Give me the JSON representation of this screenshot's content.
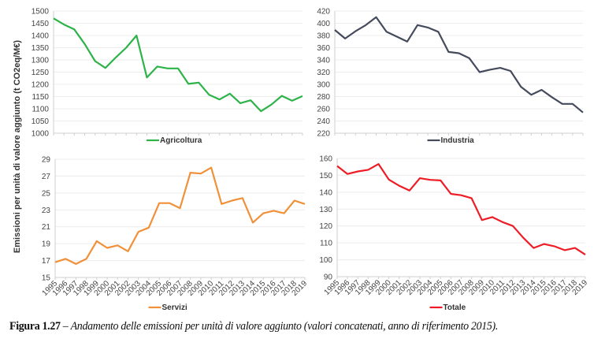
{
  "y_axis_title": "Emissioni per unità di valore aggiunto (t CO2eq/M€)",
  "caption": {
    "label": "Figura 1.27",
    "separator": " – ",
    "text": "Andamento delle emissioni per unità di valore aggiunto (valori concatenati, anno di riferimento 2015)."
  },
  "chart_data": [
    {
      "type": "line",
      "x": [
        1995,
        1996,
        1997,
        1998,
        1999,
        2000,
        2001,
        2002,
        2003,
        2004,
        2005,
        2006,
        2007,
        2008,
        2009,
        2010,
        2011,
        2012,
        2013,
        2014,
        2015,
        2016,
        2017,
        2018,
        2019
      ],
      "series": [
        {
          "name": "Agricoltura",
          "color": "#2db34a",
          "values": [
            1470,
            1445,
            1425,
            1365,
            1295,
            1267,
            1310,
            1350,
            1400,
            1228,
            1273,
            1265,
            1265,
            1202,
            1207,
            1157,
            1138,
            1162,
            1123,
            1135,
            1090,
            1117,
            1153,
            1133,
            1152
          ]
        }
      ],
      "ylim": [
        1000,
        1500
      ],
      "yticks": [
        1000,
        1050,
        1100,
        1150,
        1200,
        1250,
        1300,
        1350,
        1400,
        1450,
        1500
      ],
      "show_xticklabels": false,
      "grid": true,
      "legend": "bottom"
    },
    {
      "type": "line",
      "x": [
        1995,
        1996,
        1997,
        1998,
        1999,
        2000,
        2001,
        2002,
        2003,
        2004,
        2005,
        2006,
        2007,
        2008,
        2009,
        2010,
        2011,
        2012,
        2013,
        2014,
        2015,
        2016,
        2017,
        2018,
        2019
      ],
      "series": [
        {
          "name": "Industria",
          "color": "#454b5c",
          "values": [
            389,
            375,
            387,
            397,
            410,
            386,
            378,
            370,
            397,
            393,
            386,
            353,
            351,
            343,
            320,
            324,
            327,
            322,
            296,
            283,
            291,
            279,
            268,
            268,
            254
          ]
        }
      ],
      "ylim": [
        220,
        420
      ],
      "yticks": [
        220,
        240,
        260,
        280,
        300,
        320,
        340,
        360,
        380,
        400,
        420
      ],
      "show_xticklabels": false,
      "grid": true,
      "legend": "bottom"
    },
    {
      "type": "line",
      "x": [
        1995,
        1996,
        1997,
        1998,
        1999,
        2000,
        2001,
        2002,
        2003,
        2004,
        2005,
        2006,
        2007,
        2008,
        2009,
        2010,
        2011,
        2012,
        2013,
        2014,
        2015,
        2016,
        2017,
        2018,
        2019
      ],
      "series": [
        {
          "name": "Servizi",
          "color": "#f0913a",
          "values": [
            16.8,
            17.2,
            16.6,
            17.2,
            19.3,
            18.5,
            18.8,
            18.1,
            20.4,
            20.9,
            23.8,
            23.8,
            23.2,
            27.4,
            27.3,
            28.0,
            23.7,
            24.1,
            24.4,
            21.5,
            22.6,
            22.9,
            22.6,
            24.1,
            23.7
          ]
        }
      ],
      "ylim": [
        15,
        29
      ],
      "yticks": [
        15,
        17,
        19,
        21,
        23,
        25,
        27,
        29
      ],
      "show_xticklabels": true,
      "grid": true,
      "legend": "bottom"
    },
    {
      "type": "line",
      "x": [
        1995,
        1996,
        1997,
        1998,
        1999,
        2000,
        2001,
        2002,
        2003,
        2004,
        2005,
        2006,
        2007,
        2008,
        2009,
        2010,
        2011,
        2012,
        2013,
        2014,
        2015,
        2016,
        2017,
        2018,
        2019
      ],
      "series": [
        {
          "name": "Totale",
          "color": "#ee1c25",
          "values": [
            155.5,
            150.8,
            152.3,
            153.3,
            156.7,
            147.5,
            143.8,
            141.0,
            148.3,
            147.3,
            147.0,
            139.0,
            138.2,
            136.5,
            123.5,
            125.3,
            122.3,
            120.0,
            113.0,
            107.0,
            109.3,
            108.0,
            105.7,
            107.0,
            103.0
          ]
        }
      ],
      "ylim": [
        90,
        160
      ],
      "yticks": [
        90,
        100,
        110,
        120,
        130,
        140,
        150,
        160
      ],
      "show_xticklabels": true,
      "grid": true,
      "legend": "bottom"
    }
  ]
}
